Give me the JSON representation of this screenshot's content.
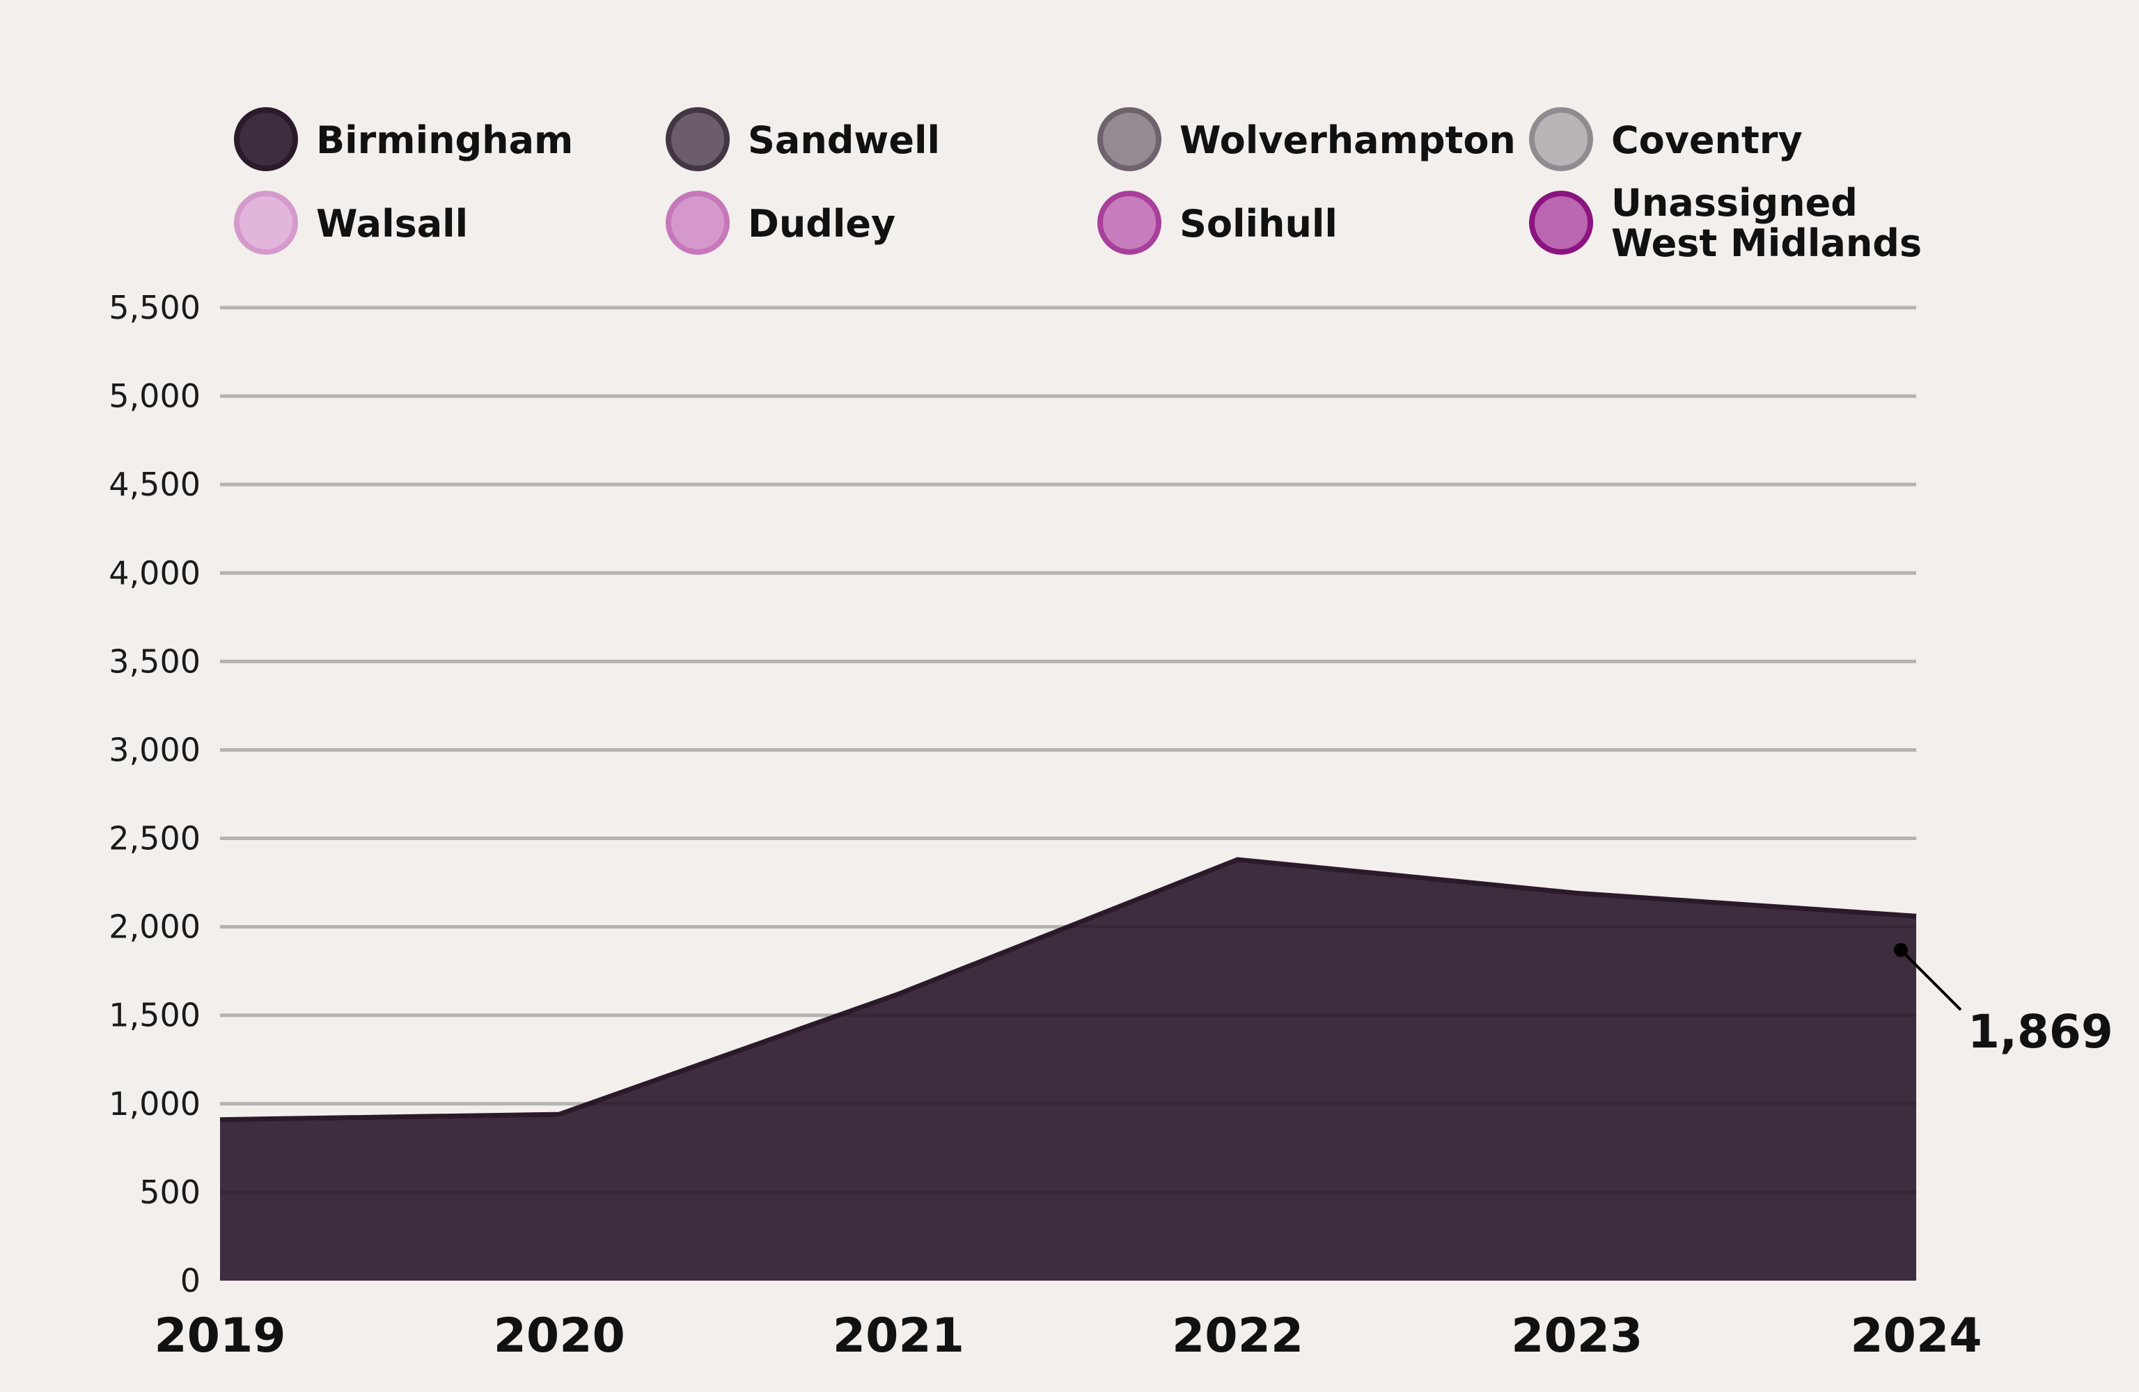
{
  "chart_data": {
    "type": "area",
    "stacked": true,
    "title": "",
    "xlabel": "",
    "ylabel": "",
    "x": [
      "2019",
      "2020",
      "2021",
      "2022",
      "2023",
      "2024"
    ],
    "ylim": [
      0,
      5500
    ],
    "yticks": [
      0,
      500,
      1000,
      1500,
      2000,
      2500,
      3000,
      3500,
      4000,
      4500,
      5000,
      5500
    ],
    "ytick_labels": [
      "0",
      "500",
      "1,000",
      "1,500",
      "2,000",
      "2,500",
      "3,000",
      "3,500",
      "4,000",
      "4,500",
      "5,000",
      "5,500"
    ],
    "grid": true,
    "legend_position": "top",
    "series": [
      {
        "name": "Birmingham",
        "values": [
          910,
          940,
          1620,
          2380,
          2190,
          2060
        ],
        "color": "#3e2d3e",
        "stroke": "#2a1a2a"
      },
      {
        "name": "Sandwell",
        "values": [
          0,
          0,
          0,
          0,
          0,
          0
        ],
        "color": "#6b5d6a",
        "stroke": "#433643"
      },
      {
        "name": "Wolverhampton",
        "values": [
          0,
          0,
          0,
          0,
          0,
          0
        ],
        "color": "#958a94",
        "stroke": "#6e636d"
      },
      {
        "name": "Coventry",
        "values": [
          0,
          0,
          0,
          0,
          0,
          0
        ],
        "color": "#bab4b9",
        "stroke": "#918b90"
      },
      {
        "name": "Walsall",
        "values": [
          0,
          0,
          0,
          0,
          0,
          0
        ],
        "color": "#e2b5dc",
        "stroke": "#d49acb"
      },
      {
        "name": "Dudley",
        "values": [
          0,
          0,
          0,
          0,
          0,
          0
        ],
        "color": "#d598cb",
        "stroke": "#c678ba"
      },
      {
        "name": "Solihull",
        "values": [
          0,
          0,
          0,
          0,
          0,
          0
        ],
        "color": "#c77dbd",
        "stroke": "#a8409a"
      },
      {
        "name": "Unassigned\nWest Midlands",
        "values": [
          0,
          0,
          0,
          0,
          0,
          0
        ],
        "color": "#bb66b0",
        "stroke": "#8a1480"
      }
    ],
    "annotations": [
      {
        "x": "2024",
        "y": 1869,
        "label": "1,869"
      }
    ]
  }
}
